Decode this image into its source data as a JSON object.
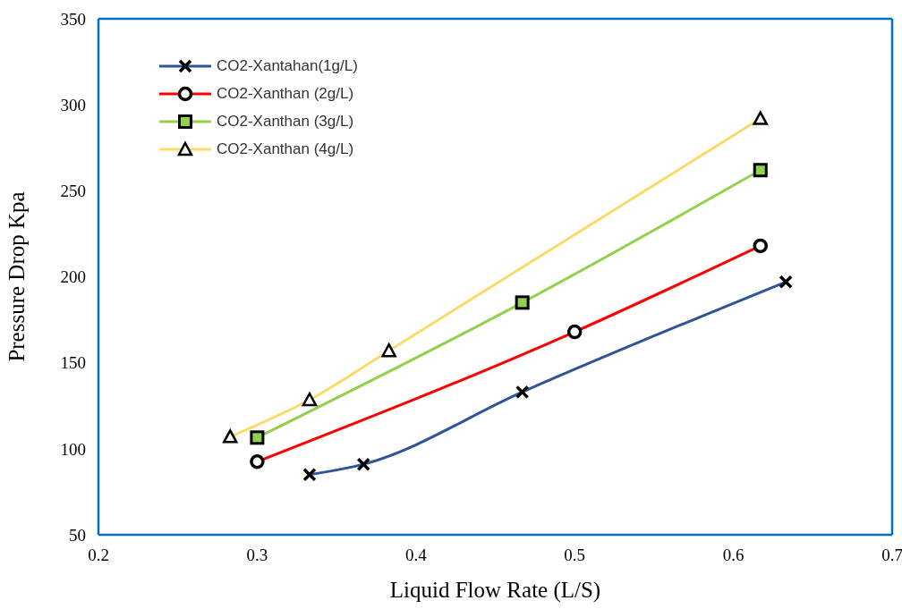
{
  "chart_data": {
    "type": "line",
    "xlabel": "Liquid Flow Rate (L/S)",
    "ylabel": "Pressure Drop Kpa",
    "xlim": [
      0.2,
      0.7
    ],
    "xticks": [
      0.2,
      0.3,
      0.4,
      0.5,
      0.6,
      0.7
    ],
    "ylim": [
      50,
      350
    ],
    "yticks": [
      50,
      100,
      150,
      200,
      250,
      300,
      350
    ],
    "grid": false,
    "legend": "top left",
    "series": [
      {
        "name": "CO2-Xantahan(1g/L)",
        "color": "#2f5597",
        "marker": "cross",
        "x": [
          0.333,
          0.367,
          0.467,
          0.633
        ],
        "values": [
          85,
          91,
          133,
          197
        ]
      },
      {
        "name": "CO2-Xanthan (2g/L)",
        "color": "#ff0000",
        "marker": "circle",
        "x": [
          0.3,
          0.5,
          0.617
        ],
        "values": [
          92.5,
          168,
          218
        ]
      },
      {
        "name": "CO2-Xanthan (3g/L)",
        "color": "#92d050",
        "marker": "square",
        "x": [
          0.3,
          0.467,
          0.617
        ],
        "values": [
          106.5,
          185,
          262
        ]
      },
      {
        "name": "CO2-Xanthan (4g/L)",
        "color": "#ffd966",
        "marker": "triangle",
        "x": [
          0.283,
          0.333,
          0.383,
          0.617
        ],
        "values": [
          107,
          128.5,
          157,
          292
        ]
      }
    ]
  }
}
